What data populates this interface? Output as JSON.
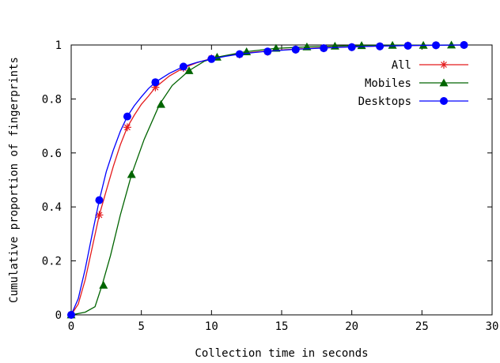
{
  "chart_data": {
    "type": "line",
    "xlabel": "Collection time in seconds",
    "ylabel": "Cumulative proportion of fingerprints",
    "xlim": [
      0,
      30
    ],
    "ylim": [
      0,
      1
    ],
    "x_ticks": [
      "0",
      "5",
      "10",
      "15",
      "20",
      "25",
      "30"
    ],
    "y_ticks": [
      "0",
      "0.2",
      "0.4",
      "0.6",
      "0.8",
      "1"
    ],
    "legend_position": "top-right",
    "grid": false,
    "series": [
      {
        "name": "All",
        "color": "#e41a1c",
        "marker": "asterisk",
        "curve": [
          [
            0,
            0
          ],
          [
            0.5,
            0.04
          ],
          [
            1,
            0.13
          ],
          [
            1.5,
            0.25
          ],
          [
            2,
            0.37
          ],
          [
            2.5,
            0.46
          ],
          [
            3,
            0.55
          ],
          [
            3.5,
            0.63
          ],
          [
            4,
            0.695
          ],
          [
            4.5,
            0.74
          ],
          [
            5,
            0.78
          ],
          [
            5.5,
            0.81
          ],
          [
            6,
            0.843
          ],
          [
            7,
            0.885
          ],
          [
            8,
            0.915
          ],
          [
            9,
            0.935
          ],
          [
            10,
            0.95
          ],
          [
            11,
            0.96
          ],
          [
            12,
            0.967
          ],
          [
            13,
            0.973
          ],
          [
            14,
            0.978
          ],
          [
            16,
            0.985
          ],
          [
            18,
            0.99
          ],
          [
            20,
            0.993
          ],
          [
            22,
            0.996
          ],
          [
            24,
            0.998
          ],
          [
            26,
            0.999
          ],
          [
            28,
            1.0
          ]
        ],
        "markers": [
          [
            0,
            0
          ],
          [
            2,
            0.37
          ],
          [
            4,
            0.695
          ],
          [
            6,
            0.843
          ],
          [
            8,
            0.915
          ],
          [
            10,
            0.95
          ],
          [
            12,
            0.965
          ],
          [
            14,
            0.975
          ],
          [
            16,
            0.983
          ],
          [
            18,
            0.988
          ],
          [
            20,
            0.992
          ],
          [
            22,
            0.995
          ],
          [
            24,
            0.998
          ],
          [
            26,
            0.999
          ],
          [
            28,
            1.0
          ]
        ]
      },
      {
        "name": "Mobiles",
        "color": "#006400",
        "marker": "triangle",
        "curve": [
          [
            0,
            0
          ],
          [
            1,
            0.01
          ],
          [
            1.7,
            0.03
          ],
          [
            2.2,
            0.11
          ],
          [
            2.8,
            0.22
          ],
          [
            3.5,
            0.37
          ],
          [
            4.3,
            0.52
          ],
          [
            5.2,
            0.65
          ],
          [
            6.3,
            0.78
          ],
          [
            7.2,
            0.85
          ],
          [
            8.4,
            0.905
          ],
          [
            9.5,
            0.94
          ],
          [
            10.4,
            0.955
          ],
          [
            12.4,
            0.975
          ],
          [
            14.5,
            0.987
          ],
          [
            16.8,
            0.993
          ],
          [
            18.8,
            0.996
          ],
          [
            20.6,
            0.998
          ],
          [
            23,
            0.999
          ],
          [
            25,
            0.999
          ],
          [
            27.1,
            1.0
          ],
          [
            28.2,
            1.0
          ]
        ],
        "markers": [
          [
            0,
            0
          ],
          [
            2.3,
            0.11
          ],
          [
            4.3,
            0.52
          ],
          [
            6.4,
            0.78
          ],
          [
            8.4,
            0.905
          ],
          [
            10.4,
            0.955
          ],
          [
            12.5,
            0.975
          ],
          [
            14.6,
            0.988
          ],
          [
            16.8,
            0.993
          ],
          [
            18.8,
            0.996
          ],
          [
            20.7,
            0.998
          ],
          [
            22.9,
            0.999
          ],
          [
            25.1,
            0.999
          ],
          [
            27.1,
            1.0
          ]
        ]
      },
      {
        "name": "Desktops",
        "color": "#0000ff",
        "marker": "circle",
        "curve": [
          [
            0,
            0
          ],
          [
            0.5,
            0.06
          ],
          [
            1,
            0.17
          ],
          [
            1.5,
            0.3
          ],
          [
            2,
            0.425
          ],
          [
            2.5,
            0.53
          ],
          [
            3,
            0.61
          ],
          [
            3.5,
            0.68
          ],
          [
            4,
            0.735
          ],
          [
            4.5,
            0.775
          ],
          [
            5,
            0.808
          ],
          [
            5.5,
            0.838
          ],
          [
            6,
            0.862
          ],
          [
            7,
            0.895
          ],
          [
            8,
            0.92
          ],
          [
            9,
            0.936
          ],
          [
            10,
            0.948
          ],
          [
            11,
            0.958
          ],
          [
            12,
            0.966
          ],
          [
            13,
            0.972
          ],
          [
            14,
            0.977
          ],
          [
            16,
            0.984
          ],
          [
            18,
            0.989
          ],
          [
            20,
            0.993
          ],
          [
            22,
            0.996
          ],
          [
            24,
            0.998
          ],
          [
            26,
            0.999
          ],
          [
            28,
            1.0
          ]
        ],
        "markers": [
          [
            0,
            0
          ],
          [
            2,
            0.425
          ],
          [
            4,
            0.735
          ],
          [
            6,
            0.862
          ],
          [
            8,
            0.92
          ],
          [
            10,
            0.948
          ],
          [
            12,
            0.966
          ],
          [
            14,
            0.976
          ],
          [
            16,
            0.983
          ],
          [
            18,
            0.988
          ],
          [
            20,
            0.992
          ],
          [
            22,
            0.995
          ],
          [
            24,
            0.997
          ],
          [
            26,
            0.999
          ],
          [
            28,
            1.0
          ]
        ]
      }
    ]
  }
}
